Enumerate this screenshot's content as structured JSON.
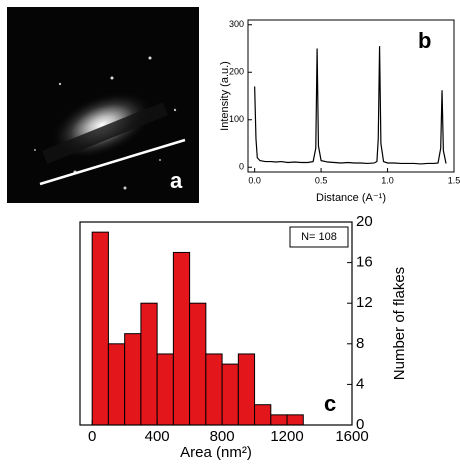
{
  "chart_data": [
    {
      "type": "image",
      "label": "a"
    },
    {
      "type": "line",
      "label": "b",
      "xlabel": "Distance (A⁻¹)",
      "ylabel": "Intensity (a.u.)",
      "x": [
        0.0,
        0.01,
        0.02,
        0.04,
        0.08,
        0.12,
        0.16,
        0.2,
        0.25,
        0.3,
        0.35,
        0.4,
        0.44,
        0.46,
        0.47,
        0.48,
        0.5,
        0.55,
        0.6,
        0.65,
        0.7,
        0.75,
        0.8,
        0.85,
        0.9,
        0.92,
        0.93,
        0.94,
        0.95,
        0.97,
        1.0,
        1.05,
        1.1,
        1.15,
        1.2,
        1.25,
        1.3,
        1.35,
        1.38,
        1.4,
        1.41,
        1.42,
        1.44
      ],
      "values": [
        170,
        60,
        20,
        14,
        12,
        12,
        11,
        12,
        10,
        11,
        10,
        10,
        12,
        40,
        250,
        45,
        14,
        11,
        10,
        9,
        10,
        9,
        9,
        8,
        9,
        12,
        60,
        255,
        50,
        12,
        9,
        9,
        8,
        8,
        8,
        7,
        8,
        8,
        9,
        40,
        162,
        35,
        8
      ],
      "color": "#000000",
      "xlim": [
        -0.05,
        1.5
      ],
      "ylim": [
        -10,
        310
      ],
      "xticks": [
        {
          "value": 0,
          "label": "0.0"
        },
        {
          "value": 0.5,
          "label": "0.5"
        },
        {
          "value": 1,
          "label": "1.0"
        },
        {
          "value": 1.5,
          "label": "1.5"
        }
      ],
      "yticks": [
        0,
        100,
        200,
        300
      ]
    },
    {
      "type": "histogram",
      "label": "c",
      "xlabel": "Area (nm²)",
      "ylabel": "Number of flakes",
      "annotation": "N= 108",
      "bins": [
        0,
        100,
        200,
        300,
        400,
        500,
        600,
        700,
        800,
        900,
        1000,
        1100,
        1200,
        1300
      ],
      "values": [
        19,
        8,
        9,
        12,
        7,
        17,
        12,
        7,
        6,
        7,
        2,
        1,
        1
      ],
      "color": "#e3161c",
      "xlim": [
        -75,
        1600
      ],
      "ylim": [
        0,
        20
      ],
      "xticks": [
        0,
        400,
        800,
        1200,
        1600
      ],
      "yticks": [
        0,
        4,
        8,
        12,
        16,
        20
      ]
    }
  ]
}
